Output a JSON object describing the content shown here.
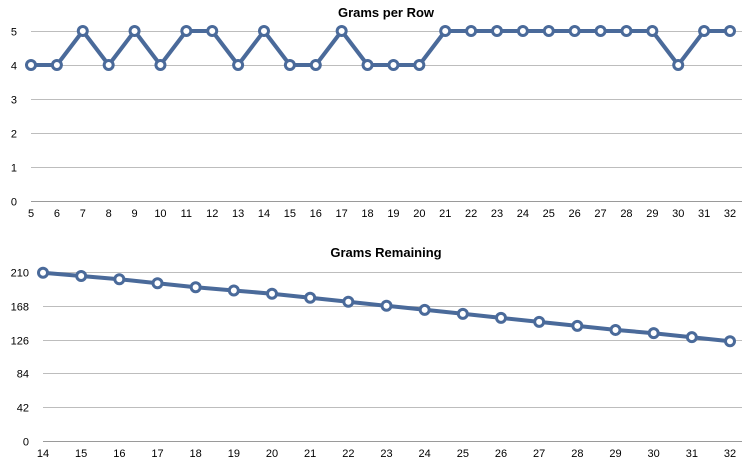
{
  "colors": {
    "series": "#4a6a9a"
  },
  "chart_data": [
    {
      "type": "line",
      "title": "Grams per Row",
      "xlabel": "",
      "ylabel": "",
      "x": [
        5,
        6,
        7,
        8,
        9,
        10,
        11,
        12,
        13,
        14,
        15,
        16,
        17,
        18,
        19,
        20,
        21,
        22,
        23,
        24,
        25,
        26,
        27,
        28,
        29,
        30,
        31,
        32
      ],
      "series": [
        {
          "values": [
            4,
            4,
            5,
            4,
            5,
            4,
            5,
            5,
            4,
            5,
            4,
            4,
            5,
            4,
            4,
            4,
            5,
            5,
            5,
            5,
            5,
            5,
            5,
            5,
            5,
            4,
            5,
            5
          ]
        }
      ],
      "yticks": [
        0,
        1,
        2,
        3,
        4,
        5
      ],
      "ylim": [
        0,
        5
      ],
      "grid": true,
      "legend": "none"
    },
    {
      "type": "line",
      "title": "Grams Remaining",
      "xlabel": "",
      "ylabel": "",
      "x": [
        14,
        15,
        16,
        17,
        18,
        19,
        20,
        21,
        22,
        23,
        24,
        25,
        26,
        27,
        28,
        29,
        30,
        31,
        32
      ],
      "series": [
        {
          "values": [
            209,
            205,
            201,
            196,
            191,
            187,
            183,
            178,
            173,
            168,
            163,
            158,
            153,
            148,
            143,
            138,
            134,
            129,
            124
          ]
        }
      ],
      "yticks": [
        0,
        42,
        84,
        126,
        168,
        210
      ],
      "ylim": [
        0,
        210
      ],
      "grid": true,
      "legend": "none"
    }
  ]
}
